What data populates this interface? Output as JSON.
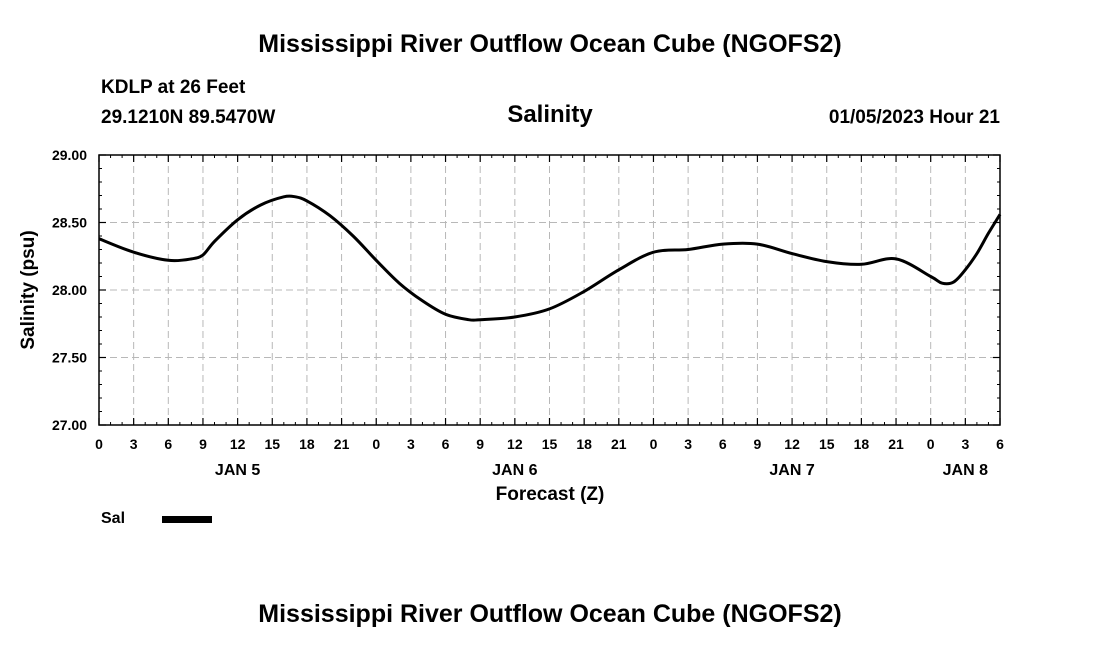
{
  "header": {
    "title_top": "Mississippi River Outflow Ocean Cube (NGOFS2)",
    "title_bottom": "Mississippi River Outflow Ocean Cube (NGOFS2)",
    "station_line1": "KDLP at 26 Feet",
    "station_line2": "29.1210N  89.5470W",
    "run_time": "01/05/2023 Hour 21"
  },
  "legend": {
    "label": "Sal"
  },
  "chart_data": {
    "type": "line",
    "title": "Salinity",
    "xlabel": "Forecast (Z)",
    "ylabel": "Salinity (psu)",
    "xlim": [
      0,
      78
    ],
    "ylim": [
      27.0,
      29.0
    ],
    "grid": true,
    "yticks": [
      "27.00",
      "27.50",
      "28.00",
      "28.50",
      "29.00"
    ],
    "xtick_labels": [
      "0",
      "3",
      "6",
      "9",
      "12",
      "15",
      "18",
      "21",
      "0",
      "3",
      "6",
      "9",
      "12",
      "15",
      "18",
      "21",
      "0",
      "3",
      "6",
      "9",
      "12",
      "15",
      "18",
      "21",
      "0",
      "3",
      "6"
    ],
    "day_labels": [
      {
        "label": "JAN 5",
        "hour": 12
      },
      {
        "label": "JAN 6",
        "hour": 36
      },
      {
        "label": "JAN 7",
        "hour": 60
      },
      {
        "label": "JAN 8",
        "hour": 75
      }
    ],
    "series": [
      {
        "name": "Sal",
        "color": "#000000",
        "x": [
          0,
          3,
          6,
          8,
          9,
          10,
          12,
          14,
          16,
          17,
          18,
          20,
          22,
          24,
          26,
          28,
          30,
          32,
          33,
          36,
          39,
          42,
          45,
          48,
          51,
          54,
          57,
          60,
          63,
          66,
          69,
          72,
          73,
          74,
          75,
          76,
          77,
          78
        ],
        "values": [
          28.38,
          28.28,
          28.22,
          28.23,
          28.26,
          28.36,
          28.52,
          28.63,
          28.69,
          28.69,
          28.66,
          28.55,
          28.4,
          28.22,
          28.05,
          27.92,
          27.82,
          27.78,
          27.78,
          27.8,
          27.86,
          27.99,
          28.15,
          28.28,
          28.3,
          28.34,
          28.34,
          28.27,
          28.21,
          28.19,
          28.23,
          28.1,
          28.05,
          28.06,
          28.15,
          28.27,
          28.42,
          28.56
        ]
      }
    ]
  }
}
